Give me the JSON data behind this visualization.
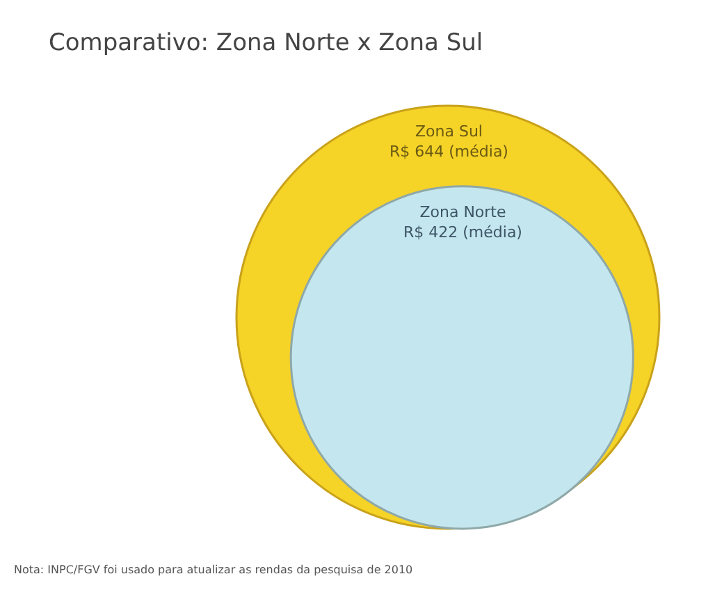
{
  "chart_data": {
    "type": "other",
    "title": "Comparativo: Zona Norte x Zona Sul",
    "categories": [
      "Zona Sul",
      "Zona Norte"
    ],
    "values": [
      644,
      422
    ],
    "value_labels": [
      "R$ 644 (média)",
      "R$ 422 (média)"
    ],
    "colors": [
      "#f5d327",
      "#c4e6ef"
    ],
    "annotations": [
      "Nota: INPC/FGV foi usado para atualizar as rendas da pesquisa de 2010"
    ]
  }
}
